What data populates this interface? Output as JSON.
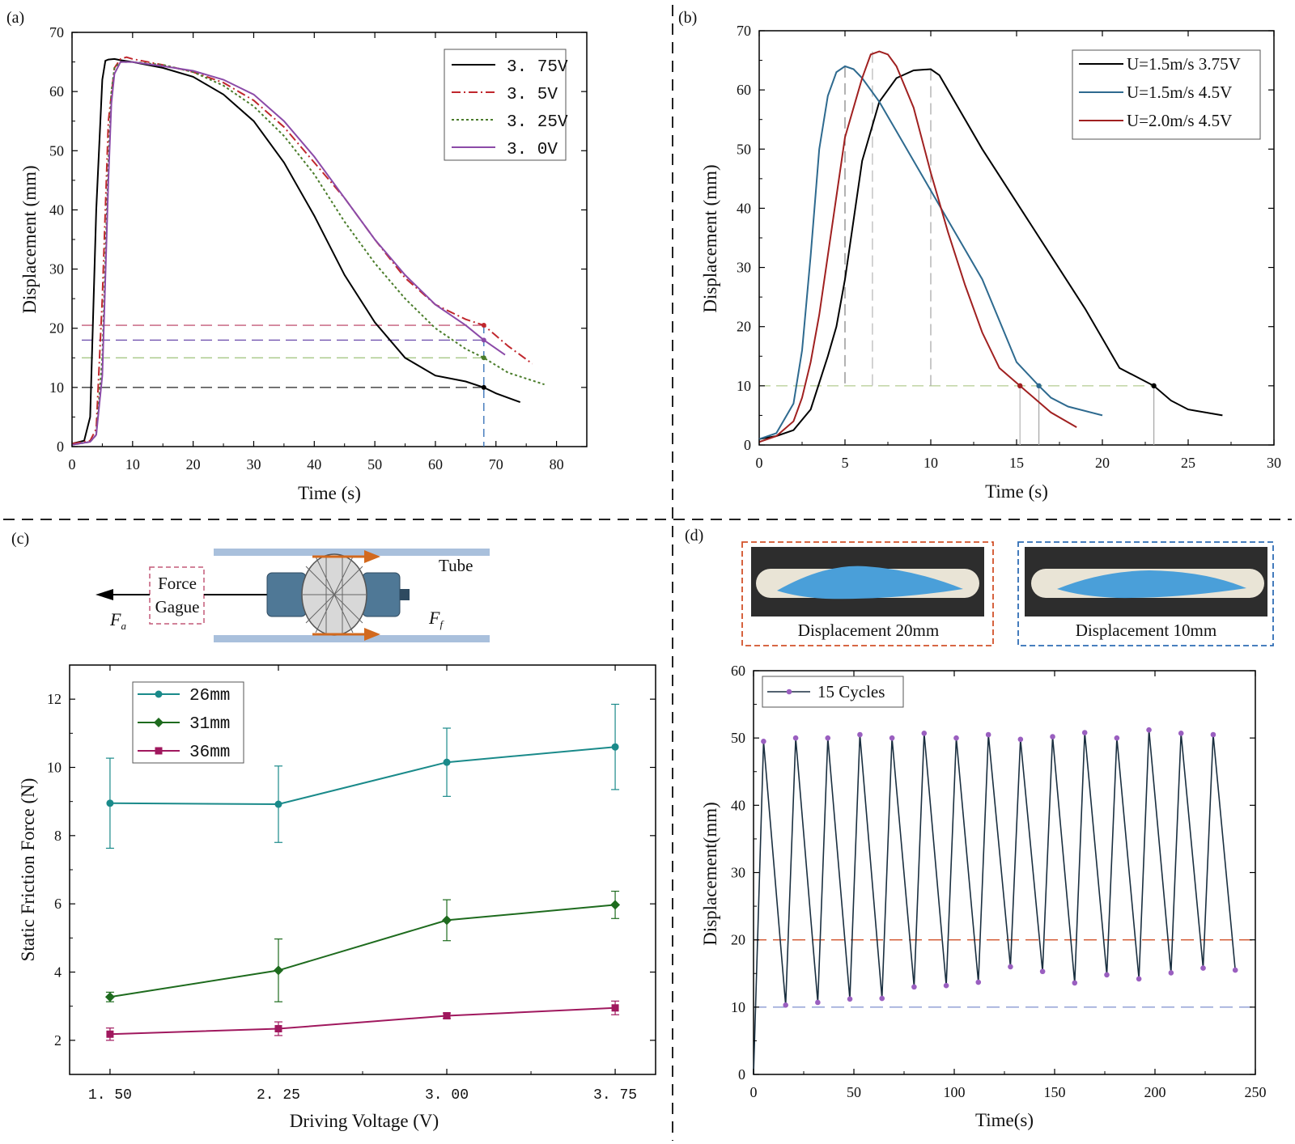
{
  "chart_data": [
    {
      "panel": "(a)",
      "type": "line",
      "xlabel": "Time (s)",
      "ylabel": "Displacement (mm)",
      "xlim": [
        0,
        85
      ],
      "ylim": [
        0,
        70
      ],
      "xticks": [
        "0",
        "10",
        "20",
        "30",
        "40",
        "50",
        "60",
        "70",
        "80"
      ],
      "yticks": [
        "0",
        "10",
        "20",
        "30",
        "40",
        "50",
        "60",
        "70"
      ],
      "legend_position": "top-right",
      "series": [
        {
          "name": "3. 75V",
          "color": "#000000",
          "dash": "solid",
          "x": [
            0,
            2,
            3,
            4,
            5,
            5.5,
            6,
            7,
            8,
            10,
            15,
            20,
            25,
            30,
            35,
            40,
            45,
            50,
            55,
            60,
            65,
            68,
            70,
            74
          ],
          "y": [
            0.5,
            1,
            5,
            40,
            62,
            65.2,
            65.4,
            65.5,
            65.3,
            65,
            64,
            62.5,
            59.5,
            55,
            48,
            39,
            29,
            21,
            15,
            12,
            11,
            10,
            9,
            7.5
          ]
        },
        {
          "name": "3. 5V",
          "color": "#c0272d",
          "dash": "dashdot",
          "x": [
            0,
            3,
            4,
            5,
            6,
            7,
            8,
            9,
            10,
            15,
            20,
            25,
            30,
            35,
            40,
            45,
            50,
            55,
            60,
            65,
            68,
            72,
            76
          ],
          "y": [
            0.5,
            1,
            3,
            25,
            55,
            64,
            65.5,
            65.8,
            65.5,
            64.5,
            63.3,
            61.5,
            58.5,
            54,
            48,
            42,
            35,
            28.5,
            24,
            21.5,
            20.5,
            17,
            14
          ]
        },
        {
          "name": "3. 25V",
          "color": "#4a7c2a",
          "dash": "dot",
          "x": [
            0,
            3,
            4,
            5,
            6,
            6.5,
            7,
            8,
            10,
            15,
            20,
            25,
            30,
            35,
            40,
            45,
            50,
            55,
            60,
            65,
            68,
            72,
            78
          ],
          "y": [
            0.3,
            0.8,
            2,
            15,
            48,
            60,
            64,
            65,
            65,
            64.5,
            63.3,
            61,
            57.5,
            52.5,
            46,
            38,
            31,
            25,
            20,
            16.5,
            15,
            12.5,
            10.5
          ]
        },
        {
          "name": "3. 0V",
          "color": "#8b4aa8",
          "dash": "solid",
          "x": [
            0,
            3,
            4,
            5,
            6,
            6.5,
            7,
            8,
            10,
            15,
            20,
            25,
            30,
            35,
            40,
            45,
            50,
            55,
            60,
            65,
            68,
            71.5
          ],
          "y": [
            0.3,
            0.8,
            2,
            12,
            45,
            58,
            63,
            65,
            65,
            64.3,
            63.5,
            62,
            59.5,
            55,
            49,
            42,
            35,
            29,
            24,
            20.5,
            18,
            15.5
          ]
        }
      ],
      "reference_lines": [
        {
          "y": 20.5,
          "color": "#c45a78"
        },
        {
          "y": 18,
          "color": "#6a4aaa"
        },
        {
          "y": 15,
          "color": "#9fc27a"
        },
        {
          "y": 10,
          "color": "#222222"
        },
        {
          "x": 68,
          "color": "#2f6db5"
        }
      ],
      "markers": [
        {
          "x": 68,
          "y": 20.5,
          "color": "#c0272d"
        },
        {
          "x": 68,
          "y": 18,
          "color": "#8b4aa8"
        },
        {
          "x": 68,
          "y": 15,
          "color": "#4a7c2a"
        },
        {
          "x": 68,
          "y": 10,
          "color": "#000000"
        }
      ]
    },
    {
      "panel": "(b)",
      "type": "line",
      "xlabel": "Time (s)",
      "ylabel": "Displacement (mm)",
      "xlim": [
        0,
        30
      ],
      "ylim": [
        0,
        70
      ],
      "xticks": [
        "0",
        "5",
        "10",
        "15",
        "20",
        "25",
        "30"
      ],
      "yticks": [
        "0",
        "10",
        "20",
        "30",
        "40",
        "50",
        "60",
        "70"
      ],
      "legend_position": "top-right",
      "series": [
        {
          "name": "U=1.5m/s 3.75V",
          "color": "#000000",
          "x": [
            0,
            1,
            2,
            3,
            4,
            4.5,
            5,
            5.5,
            6,
            7,
            8,
            9,
            10,
            10.5,
            11,
            13,
            15,
            17,
            19,
            21,
            23,
            24,
            25,
            27
          ],
          "y": [
            1,
            1.5,
            2.5,
            6,
            15,
            20,
            28,
            38,
            48,
            58,
            62,
            63.3,
            63.5,
            62.5,
            60,
            50,
            41,
            32,
            23,
            13,
            10,
            7.5,
            6,
            5
          ]
        },
        {
          "name": "U=1.5m/s 4.5V",
          "color": "#2e6a8f",
          "x": [
            0,
            1,
            2,
            2.5,
            3,
            3.5,
            4,
            4.5,
            5,
            5.5,
            6,
            7,
            8,
            9,
            10,
            11,
            12,
            13,
            14,
            15,
            16.3,
            17,
            18,
            20
          ],
          "y": [
            1,
            2,
            7,
            16,
            32,
            50,
            59,
            63,
            64,
            63.5,
            62,
            58,
            53,
            48,
            43,
            38,
            33,
            28,
            21,
            14,
            10,
            8,
            6.5,
            5
          ]
        },
        {
          "name": "U=2.0m/s 4.5V",
          "color": "#a02020",
          "x": [
            0,
            1,
            2,
            2.5,
            3,
            3.5,
            4,
            4.5,
            5,
            6,
            6.5,
            7,
            7.5,
            8,
            9,
            10,
            11,
            12,
            13,
            14,
            15.2,
            16,
            17,
            18.5
          ],
          "y": [
            0.5,
            1.5,
            4,
            8,
            14,
            22,
            32,
            42,
            52,
            62,
            66,
            66.5,
            66,
            64,
            57,
            46,
            36,
            27,
            19,
            13,
            10,
            8,
            5.5,
            3
          ]
        }
      ],
      "reference_lines": [
        {
          "y": 10,
          "color": "#b4cc90"
        },
        {
          "x": 5,
          "color": "#888888"
        },
        {
          "x": 6.6,
          "color": "#bbbbbb"
        },
        {
          "x": 10,
          "color": "#aaaaaa"
        },
        {
          "x": 15.2,
          "color": "#bbbbbb"
        },
        {
          "x": 16.3,
          "color": "#aaaaaa"
        },
        {
          "x": 23,
          "color": "#aaaaaa"
        }
      ],
      "markers": [
        {
          "x": 15.2,
          "y": 10,
          "color": "#a02020"
        },
        {
          "x": 16.3,
          "y": 10,
          "color": "#2e6a8f"
        },
        {
          "x": 23,
          "y": 10,
          "color": "#000000"
        }
      ]
    },
    {
      "panel": "(c)",
      "type": "line",
      "xlabel": "Driving Voltage (V)",
      "ylabel": "Static Friction Force (N)",
      "categories": [
        "1. 50",
        "2. 25",
        "3. 00",
        "3. 75"
      ],
      "x": [
        1.5,
        2.25,
        3.0,
        3.75
      ],
      "xlim": [
        1.32,
        3.93
      ],
      "ylim": [
        1,
        13
      ],
      "yticks": [
        "2",
        "4",
        "6",
        "8",
        "10",
        "12"
      ],
      "legend_position": "top-left",
      "series": [
        {
          "name": "26mm",
          "color": "#1a8a8a",
          "marker": "circle",
          "values": [
            8.95,
            8.92,
            10.15,
            10.6
          ],
          "errors": [
            1.32,
            1.12,
            1.0,
            1.25
          ]
        },
        {
          "name": "31mm",
          "color": "#1e6b1e",
          "marker": "diamond",
          "values": [
            3.27,
            4.05,
            5.52,
            5.97
          ],
          "errors": [
            0.14,
            0.92,
            0.6,
            0.4
          ]
        },
        {
          "name": "36mm",
          "color": "#a0185e",
          "marker": "square",
          "values": [
            2.18,
            2.34,
            2.72,
            2.95
          ],
          "errors": [
            0.18,
            0.2,
            0.08,
            0.2
          ]
        }
      ]
    },
    {
      "panel": "(d)",
      "type": "line",
      "xlabel": "Time(s)",
      "ylabel": "Displacement(mm)",
      "xlim": [
        0,
        250
      ],
      "ylim": [
        0,
        60
      ],
      "xticks": [
        "0",
        "50",
        "100",
        "150",
        "200",
        "250"
      ],
      "yticks": [
        "0",
        "10",
        "20",
        "30",
        "40",
        "50",
        "60"
      ],
      "legend_position": "top-left",
      "series": [
        {
          "name": "15 Cycles",
          "color": "#1a2f40",
          "marker_color": "#9a5fc0",
          "x": [
            0,
            5,
            16,
            21,
            32,
            37,
            48,
            53,
            64,
            69,
            80,
            85,
            96,
            101,
            112,
            117,
            128,
            133,
            144,
            149,
            160,
            165,
            176,
            181,
            192,
            197,
            208,
            213,
            224,
            229,
            240
          ],
          "y": [
            0,
            49.5,
            10.3,
            50,
            10.7,
            50,
            11.2,
            50.5,
            11.3,
            50,
            13,
            50.7,
            13.2,
            50,
            13.7,
            50.5,
            16,
            49.8,
            15.3,
            50.2,
            13.6,
            50.8,
            14.8,
            50,
            14.2,
            51.2,
            15.1,
            50.7,
            15.8,
            50.5,
            15.5
          ]
        }
      ],
      "reference_lines": [
        {
          "y": 20,
          "color": "#d2522a"
        },
        {
          "y": 10,
          "color": "#8a9ad2"
        }
      ]
    }
  ],
  "panels": {
    "a": {
      "label": "(a)"
    },
    "b": {
      "label": "(b)"
    },
    "c": {
      "label": "(c)"
    },
    "d": {
      "label": "(d)"
    }
  },
  "diagram_c": {
    "force_gauge_line1": "Force",
    "force_gauge_line2": "Gague",
    "tube_label": "Tube",
    "fa_main": "F",
    "fa_sub": "a",
    "ff_main": "F",
    "ff_sub": "f"
  },
  "photos_d": {
    "left_caption": "Displacement 20mm",
    "right_caption": "Displacement 10mm",
    "left_border_color": "#d2522a",
    "right_border_color": "#2f6db5"
  }
}
